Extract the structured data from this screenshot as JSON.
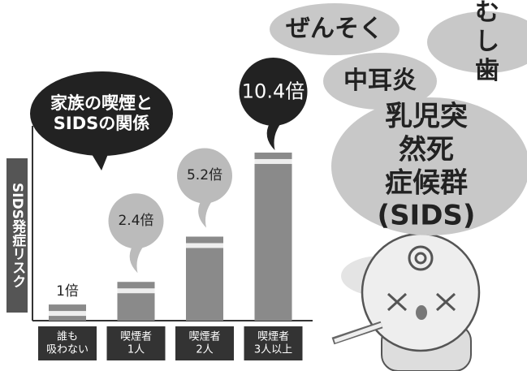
{
  "chart_data": {
    "type": "bar",
    "title": "家族の喫煙と\nSIDSの関係",
    "y_label": "SIDS発症リスク",
    "categories": [
      "誰も\n吸わない",
      "喫煙者\n1人",
      "喫煙者\n2人",
      "喫煙者\n3人以上"
    ],
    "values": [
      1,
      2.4,
      5.2,
      10.4
    ],
    "value_labels": [
      "1倍",
      "2.4倍",
      "5.2倍",
      "10.4倍"
    ],
    "color": "#8a8a8a",
    "ylim": [
      0,
      11
    ]
  },
  "annotations": [
    "ぜんそく",
    "むし歯",
    "中耳炎",
    "乳児突然死\n症候群(SIDS)"
  ]
}
